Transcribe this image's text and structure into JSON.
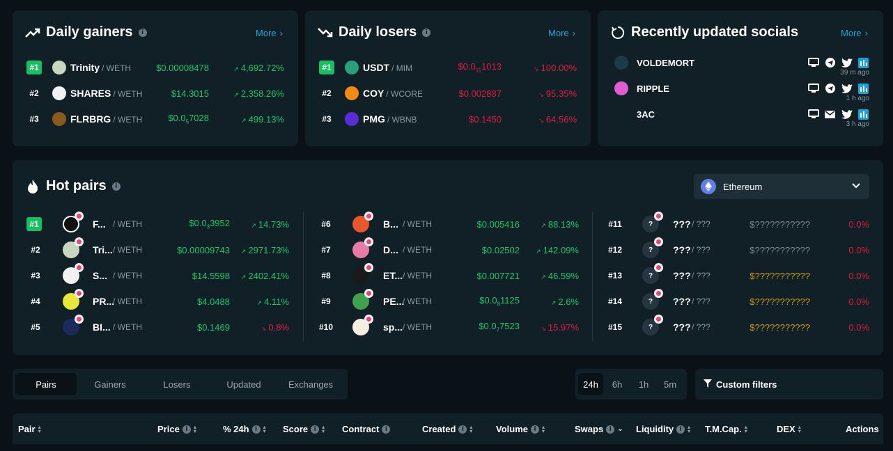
{
  "gainers": {
    "title": "Daily gainers",
    "more": "More",
    "rows": [
      {
        "rank": "#1",
        "symbol": "Trinity",
        "quote": "/ WETH",
        "price": "$0.00008478",
        "pct": "4,692.72%"
      },
      {
        "rank": "#2",
        "symbol": "SHARES",
        "quote": "/ WETH",
        "price": "$14.3015",
        "pct": "2,358.26%"
      },
      {
        "rank": "#3",
        "symbol": "FLRBRG",
        "quote": "/ WETH",
        "price_pre": "$0.0",
        "price_sub": "5",
        "price_post": "7028",
        "pct": "499.13%"
      }
    ]
  },
  "losers": {
    "title": "Daily losers",
    "more": "More",
    "rows": [
      {
        "rank": "#1",
        "symbol": "USDT",
        "quote": "/ MIM",
        "price_pre": "$0.0",
        "price_sub": "11",
        "price_post": "1013",
        "pct": "100.00%"
      },
      {
        "rank": "#2",
        "symbol": "COY",
        "quote": "/ WCORE",
        "price": "$0.002887",
        "pct": "95.35%"
      },
      {
        "rank": "#3",
        "symbol": "PMG",
        "quote": "/ WBNB",
        "price": "$0.1450",
        "pct": "64.56%"
      }
    ]
  },
  "socials": {
    "title": "Recently updated socials",
    "more": "More",
    "rows": [
      {
        "name": "VOLDEMORT",
        "ago": "39 m ago"
      },
      {
        "name": "RIPPLE",
        "ago": "1 h ago"
      },
      {
        "name": "3AC",
        "ago": "3 h ago"
      }
    ]
  },
  "hot": {
    "title": "Hot pairs",
    "chain": "Ethereum",
    "col1": [
      {
        "rank": "#1",
        "symbol": "F...",
        "quote": "/ WETH",
        "price_pre": "$0.0",
        "price_sub": "3",
        "price_post": "3952",
        "pct": "14.73%",
        "dir": "up"
      },
      {
        "rank": "#2",
        "symbol": "Tri...",
        "quote": "/ WETH",
        "price": "$0.00009743",
        "pct": "2971.73%",
        "dir": "up"
      },
      {
        "rank": "#3",
        "symbol": "S...",
        "quote": "/ WETH",
        "price": "$14.5598",
        "pct": "2402.41%",
        "dir": "up"
      },
      {
        "rank": "#4",
        "symbol": "PR...",
        "quote": "/ WETH",
        "price": "$4.0488",
        "pct": "4.11%",
        "dir": "up"
      },
      {
        "rank": "#5",
        "symbol": "BI...",
        "quote": "/ WETH",
        "price": "$0.1469",
        "pct": "0.8%",
        "dir": "down"
      }
    ],
    "col2": [
      {
        "rank": "#6",
        "symbol": "B...",
        "quote": "/ WETH",
        "price": "$0.005416",
        "pct": "88.13%",
        "dir": "up"
      },
      {
        "rank": "#7",
        "symbol": "D...",
        "quote": "/ WETH",
        "price": "$0.02502",
        "pct": "142.09%",
        "dir": "up"
      },
      {
        "rank": "#8",
        "symbol": "ET...",
        "quote": "/ WETH",
        "price": "$0.007721",
        "pct": "46.59%",
        "dir": "up"
      },
      {
        "rank": "#9",
        "symbol": "PE...",
        "quote": "/ WETH",
        "price_pre": "$0.0",
        "price_sub": "8",
        "price_post": "1125",
        "pct": "2.6%",
        "dir": "up"
      },
      {
        "rank": "#10",
        "symbol": "sp...",
        "quote": "/ WETH",
        "price_pre": "$0.0",
        "price_sub": "7",
        "price_post": "7523",
        "pct": "15.97%",
        "dir": "down"
      }
    ],
    "col3": [
      {
        "rank": "#11",
        "symbol": "???",
        "quote": "/ ???",
        "price": "$???????????",
        "pct": "0.0%",
        "price_color": "#7d8a92"
      },
      {
        "rank": "#12",
        "symbol": "???",
        "quote": "/ ???",
        "price": "$???????????",
        "pct": "0.0%",
        "price_color": "#7d8a92"
      },
      {
        "rank": "#13",
        "symbol": "???",
        "quote": "/ ???",
        "price": "$???????????",
        "pct": "0.0%",
        "price_color": "#d19a17"
      },
      {
        "rank": "#14",
        "symbol": "???",
        "quote": "/ ???",
        "price": "$???????????",
        "pct": "0.0%",
        "price_color": "#d19a17"
      },
      {
        "rank": "#15",
        "symbol": "???",
        "quote": "/ ???",
        "price": "$???????????",
        "pct": "0.0%",
        "price_color": "#d19a17"
      }
    ],
    "unknown_icon": "?"
  },
  "tabs": [
    "Pairs",
    "Gainers",
    "Losers",
    "Updated",
    "Exchanges"
  ],
  "timeframes": [
    "24h",
    "6h",
    "1h",
    "5m"
  ],
  "custom_filters": "Custom filters",
  "table_headers": {
    "pair": "Pair",
    "price": "Price",
    "pct24": "% 24h",
    "score": "Score",
    "contract": "Contract",
    "created": "Created",
    "volume": "Volume",
    "swaps": "Swaps",
    "liquidity": "Liquidity",
    "tmcap": "T.M.Cap.",
    "dex": "DEX",
    "actions": "Actions"
  },
  "colors": {
    "green": "#1ec769",
    "red": "#e01b3c",
    "accent": "#1ea7d9",
    "card": "#112027"
  }
}
